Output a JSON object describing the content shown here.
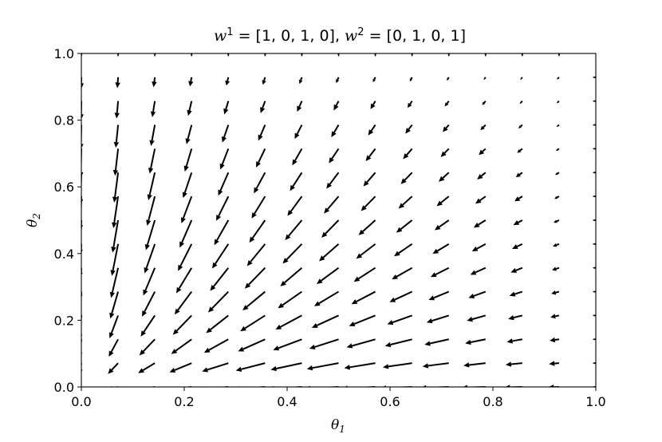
{
  "chart_data": {
    "type": "quiver",
    "title": {
      "w1_symbol": "w",
      "w1_superscript": "1",
      "w1_value": " = [1, 0, 1, 0], ",
      "w2_symbol": "w",
      "w2_superscript": "2",
      "w2_value": " = [0, 1, 0, 1]"
    },
    "xlabel": {
      "symbol": "θ",
      "subscript": "1"
    },
    "ylabel": {
      "symbol": "θ",
      "subscript": "2"
    },
    "xlim": [
      0,
      1
    ],
    "ylim": [
      0,
      1
    ],
    "xticks": [
      "0.0",
      "0.2",
      "0.4",
      "0.6",
      "0.8",
      "1.0"
    ],
    "yticks": [
      "0.0",
      "0.2",
      "0.4",
      "0.6",
      "0.8",
      "1.0"
    ],
    "grid": false,
    "grid_n": 15,
    "field": "(-(1-θ2)·θ1·(1-θ1), -(1-θ1)·θ2·(1-θ2)) normalized per arrow; length scales with magnitude",
    "arrow_color": "#000000"
  }
}
